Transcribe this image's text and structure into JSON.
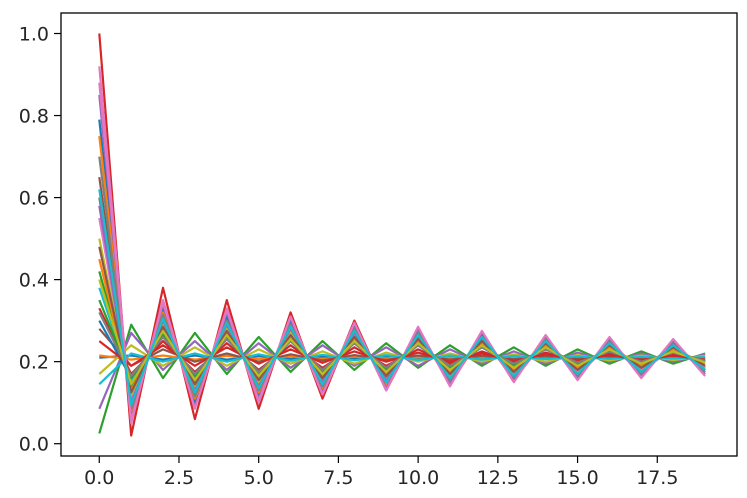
{
  "chart_data": {
    "type": "line",
    "title": "",
    "xlabel": "",
    "ylabel": "",
    "xlim": [
      -1.2,
      20.0
    ],
    "ylim": [
      -0.03,
      1.05
    ],
    "grid": false,
    "legend": "none",
    "x_ticks": [
      0.0,
      2.5,
      5.0,
      7.5,
      10.0,
      12.5,
      15.0,
      17.5
    ],
    "x_tick_labels": [
      "0.0",
      "2.5",
      "5.0",
      "7.5",
      "10.0",
      "12.5",
      "15.0",
      "17.5"
    ],
    "y_ticks": [
      0.0,
      0.2,
      0.4,
      0.6,
      0.8,
      1.0
    ],
    "y_tick_labels": [
      "0.0",
      "0.2",
      "0.4",
      "0.6",
      "0.8",
      "1.0"
    ],
    "x": [
      0,
      1,
      2,
      3,
      4,
      5,
      6,
      7,
      8,
      9,
      10,
      11,
      12,
      13,
      14,
      15,
      16,
      17,
      18,
      19
    ],
    "series_colors": [
      "#1f77b4",
      "#ff7f0e",
      "#2ca02c",
      "#d62728",
      "#9467bd",
      "#8c564b",
      "#e377c2",
      "#7f7f7f",
      "#bcbd22",
      "#17becf"
    ],
    "series": [
      {
        "values": [
          0.21,
          0.215,
          0.205,
          0.215,
          0.205,
          0.213,
          0.207,
          0.212,
          0.208,
          0.211,
          0.209,
          0.211,
          0.209,
          0.21,
          0.21,
          0.21,
          0.21,
          0.21,
          0.21,
          0.21
        ]
      },
      {
        "values": [
          0.215,
          0.205,
          0.215,
          0.205,
          0.214,
          0.206,
          0.213,
          0.207,
          0.212,
          0.208,
          0.211,
          0.209,
          0.211,
          0.209,
          0.21,
          0.21,
          0.21,
          0.21,
          0.21,
          0.21
        ]
      },
      {
        "values": [
          0.025,
          0.29,
          0.16,
          0.27,
          0.17,
          0.26,
          0.175,
          0.25,
          0.18,
          0.245,
          0.185,
          0.24,
          0.19,
          0.235,
          0.19,
          0.23,
          0.195,
          0.225,
          0.195,
          0.22
        ]
      },
      {
        "values": [
          1.0,
          0.02,
          0.38,
          0.06,
          0.35,
          0.085,
          0.32,
          0.11,
          0.3,
          0.13,
          0.28,
          0.145,
          0.265,
          0.155,
          0.255,
          0.165,
          0.245,
          0.175,
          0.235,
          0.185
        ]
      },
      {
        "values": [
          0.085,
          0.27,
          0.18,
          0.25,
          0.18,
          0.245,
          0.185,
          0.24,
          0.19,
          0.235,
          0.19,
          0.23,
          0.195,
          0.225,
          0.195,
          0.222,
          0.2,
          0.22,
          0.2,
          0.218
        ]
      },
      {
        "values": [
          0.28,
          0.19,
          0.23,
          0.2,
          0.22,
          0.2,
          0.218,
          0.203,
          0.216,
          0.204,
          0.215,
          0.205,
          0.214,
          0.206,
          0.213,
          0.207,
          0.212,
          0.208,
          0.211,
          0.209
        ]
      },
      {
        "values": [
          0.92,
          0.05,
          0.35,
          0.09,
          0.33,
          0.1,
          0.31,
          0.12,
          0.29,
          0.135,
          0.275,
          0.15,
          0.26,
          0.16,
          0.25,
          0.17,
          0.24,
          0.175,
          0.235,
          0.18
        ]
      },
      {
        "values": [
          0.6,
          0.1,
          0.3,
          0.13,
          0.29,
          0.14,
          0.28,
          0.15,
          0.27,
          0.16,
          0.26,
          0.165,
          0.255,
          0.17,
          0.25,
          0.175,
          0.245,
          0.18,
          0.24,
          0.185
        ]
      },
      {
        "values": [
          0.17,
          0.24,
          0.19,
          0.235,
          0.19,
          0.23,
          0.195,
          0.225,
          0.195,
          0.222,
          0.2,
          0.22,
          0.2,
          0.218,
          0.2,
          0.216,
          0.203,
          0.215,
          0.204,
          0.214
        ]
      },
      {
        "values": [
          0.145,
          0.22,
          0.2,
          0.22,
          0.2,
          0.218,
          0.202,
          0.217,
          0.203,
          0.216,
          0.204,
          0.215,
          0.205,
          0.214,
          0.206,
          0.213,
          0.207,
          0.212,
          0.208,
          0.211
        ]
      },
      {
        "values": [
          0.79,
          0.07,
          0.33,
          0.1,
          0.31,
          0.12,
          0.3,
          0.13,
          0.28,
          0.145,
          0.27,
          0.155,
          0.26,
          0.165,
          0.25,
          0.17,
          0.245,
          0.175,
          0.24,
          0.18
        ]
      },
      {
        "values": [
          0.75,
          0.08,
          0.32,
          0.11,
          0.3,
          0.125,
          0.29,
          0.135,
          0.28,
          0.145,
          0.27,
          0.15,
          0.26,
          0.16,
          0.255,
          0.165,
          0.25,
          0.17,
          0.245,
          0.175
        ]
      },
      {
        "values": [
          0.42,
          0.14,
          0.27,
          0.155,
          0.26,
          0.165,
          0.255,
          0.17,
          0.25,
          0.175,
          0.245,
          0.18,
          0.24,
          0.185,
          0.235,
          0.19,
          0.23,
          0.195,
          0.225,
          0.2
        ]
      },
      {
        "values": [
          0.33,
          0.17,
          0.25,
          0.175,
          0.245,
          0.18,
          0.24,
          0.185,
          0.235,
          0.19,
          0.23,
          0.195,
          0.225,
          0.198,
          0.222,
          0.2,
          0.22,
          0.2,
          0.218,
          0.202
        ]
      },
      {
        "values": [
          0.85,
          0.06,
          0.34,
          0.09,
          0.32,
          0.11,
          0.305,
          0.125,
          0.29,
          0.135,
          0.28,
          0.145,
          0.27,
          0.155,
          0.26,
          0.16,
          0.255,
          0.165,
          0.25,
          0.17
        ]
      },
      {
        "values": [
          0.65,
          0.09,
          0.31,
          0.12,
          0.295,
          0.135,
          0.285,
          0.145,
          0.275,
          0.15,
          0.265,
          0.16,
          0.26,
          0.165,
          0.25,
          0.17,
          0.245,
          0.175,
          0.24,
          0.18
        ]
      },
      {
        "values": [
          0.55,
          0.11,
          0.3,
          0.135,
          0.285,
          0.145,
          0.275,
          0.155,
          0.265,
          0.16,
          0.26,
          0.165,
          0.255,
          0.17,
          0.25,
          0.175,
          0.245,
          0.18,
          0.24,
          0.185
        ]
      },
      {
        "values": [
          0.7,
          0.085,
          0.315,
          0.115,
          0.3,
          0.13,
          0.29,
          0.14,
          0.28,
          0.15,
          0.27,
          0.155,
          0.26,
          0.16,
          0.255,
          0.165,
          0.25,
          0.17,
          0.245,
          0.175
        ]
      },
      {
        "values": [
          0.5,
          0.12,
          0.29,
          0.14,
          0.28,
          0.15,
          0.27,
          0.16,
          0.26,
          0.165,
          0.255,
          0.17,
          0.25,
          0.175,
          0.245,
          0.18,
          0.24,
          0.185,
          0.235,
          0.19
        ]
      },
      {
        "values": [
          0.38,
          0.15,
          0.27,
          0.16,
          0.26,
          0.17,
          0.25,
          0.175,
          0.245,
          0.18,
          0.24,
          0.185,
          0.235,
          0.19,
          0.23,
          0.195,
          0.225,
          0.198,
          0.222,
          0.2
        ]
      },
      {
        "values": [
          0.3,
          0.16,
          0.26,
          0.17,
          0.255,
          0.175,
          0.25,
          0.18,
          0.245,
          0.185,
          0.24,
          0.19,
          0.235,
          0.195,
          0.23,
          0.198,
          0.225,
          0.2,
          0.222,
          0.202
        ]
      },
      {
        "values": [
          0.45,
          0.13,
          0.28,
          0.15,
          0.27,
          0.16,
          0.26,
          0.165,
          0.255,
          0.17,
          0.25,
          0.175,
          0.245,
          0.18,
          0.24,
          0.185,
          0.235,
          0.19,
          0.23,
          0.195
        ]
      },
      {
        "values": [
          0.35,
          0.16,
          0.265,
          0.165,
          0.26,
          0.17,
          0.255,
          0.175,
          0.25,
          0.18,
          0.245,
          0.185,
          0.24,
          0.19,
          0.235,
          0.192,
          0.23,
          0.195,
          0.225,
          0.2
        ]
      },
      {
        "values": [
          0.25,
          0.19,
          0.24,
          0.19,
          0.235,
          0.195,
          0.23,
          0.197,
          0.225,
          0.2,
          0.222,
          0.2,
          0.22,
          0.202,
          0.218,
          0.203,
          0.216,
          0.204,
          0.215,
          0.205
        ]
      },
      {
        "values": [
          0.58,
          0.1,
          0.3,
          0.13,
          0.29,
          0.14,
          0.28,
          0.15,
          0.27,
          0.155,
          0.26,
          0.16,
          0.255,
          0.165,
          0.25,
          0.17,
          0.245,
          0.175,
          0.24,
          0.18
        ]
      },
      {
        "values": [
          0.48,
          0.125,
          0.285,
          0.145,
          0.275,
          0.155,
          0.265,
          0.16,
          0.26,
          0.165,
          0.255,
          0.17,
          0.25,
          0.175,
          0.245,
          0.18,
          0.24,
          0.185,
          0.235,
          0.19
        ]
      },
      {
        "values": [
          0.88,
          0.055,
          0.345,
          0.085,
          0.325,
          0.105,
          0.31,
          0.12,
          0.295,
          0.13,
          0.285,
          0.14,
          0.275,
          0.15,
          0.265,
          0.155,
          0.26,
          0.16,
          0.255,
          0.165
        ]
      },
      {
        "values": [
          0.32,
          0.165,
          0.26,
          0.17,
          0.255,
          0.175,
          0.25,
          0.18,
          0.245,
          0.185,
          0.24,
          0.19,
          0.235,
          0.195,
          0.23,
          0.198,
          0.225,
          0.2,
          0.222,
          0.202
        ]
      },
      {
        "values": [
          0.4,
          0.145,
          0.275,
          0.155,
          0.265,
          0.165,
          0.255,
          0.17,
          0.25,
          0.175,
          0.245,
          0.18,
          0.24,
          0.185,
          0.235,
          0.19,
          0.23,
          0.195,
          0.225,
          0.198
        ]
      },
      {
        "values": [
          0.62,
          0.095,
          0.305,
          0.125,
          0.295,
          0.135,
          0.285,
          0.145,
          0.275,
          0.15,
          0.265,
          0.16,
          0.26,
          0.165,
          0.25,
          0.17,
          0.245,
          0.175,
          0.24,
          0.18
        ]
      }
    ]
  }
}
